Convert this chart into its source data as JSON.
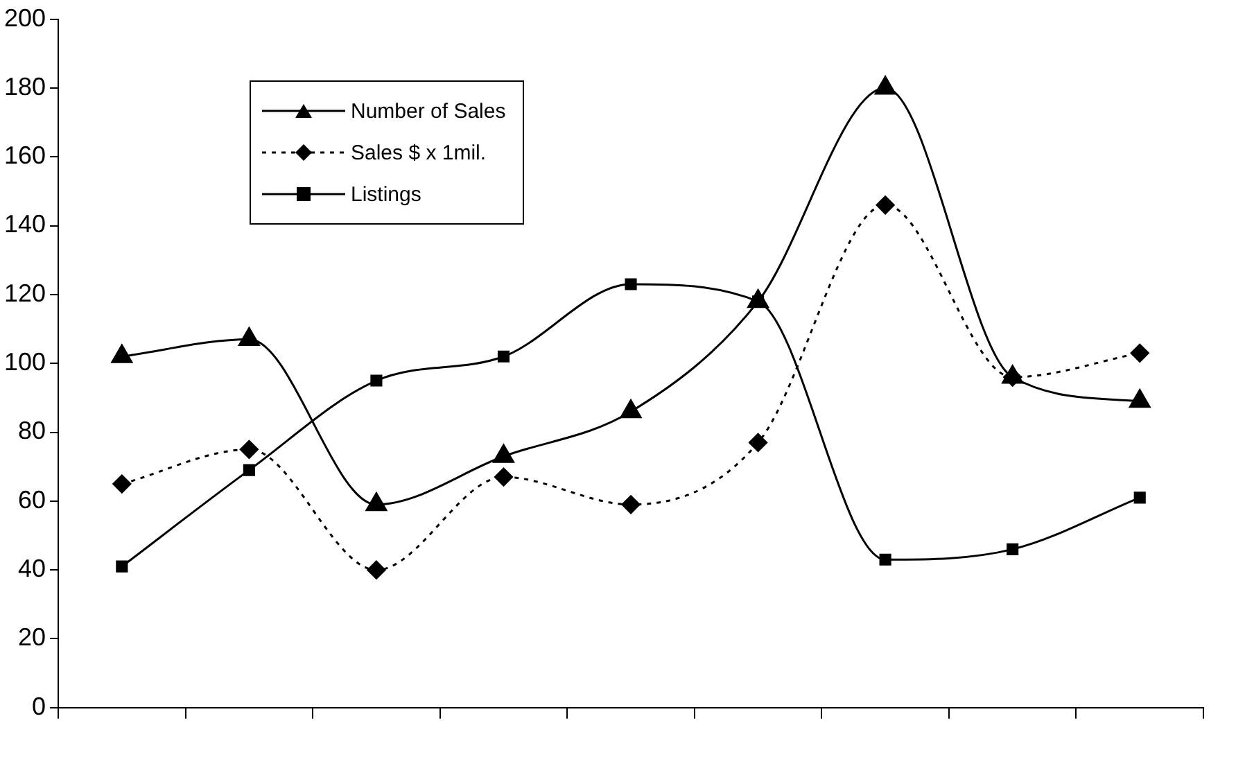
{
  "chart_data": {
    "type": "line",
    "categories": [
      null,
      null,
      null,
      null,
      null,
      null,
      null,
      null,
      null
    ],
    "series": [
      {
        "name": "Number of Sales",
        "color": "#000000",
        "marker": "triangle",
        "line_style": "solid",
        "values": [
          102,
          107,
          59,
          73,
          86,
          118,
          180,
          96,
          89
        ]
      },
      {
        "name": "Sales $ x 1mil.",
        "color": "#000000",
        "marker": "diamond",
        "line_style": "dotted",
        "values": [
          65,
          75,
          40,
          67,
          59,
          77,
          146,
          96,
          103
        ]
      },
      {
        "name": "Listings",
        "color": "#000000",
        "marker": "square",
        "line_style": "solid",
        "values": [
          41,
          69,
          95,
          102,
          123,
          118,
          43,
          46,
          61
        ]
      }
    ],
    "ylim": [
      0,
      200
    ],
    "yticks": [
      0,
      20,
      40,
      60,
      80,
      100,
      120,
      140,
      160,
      180,
      200
    ],
    "grid": false,
    "legend": "top left"
  }
}
